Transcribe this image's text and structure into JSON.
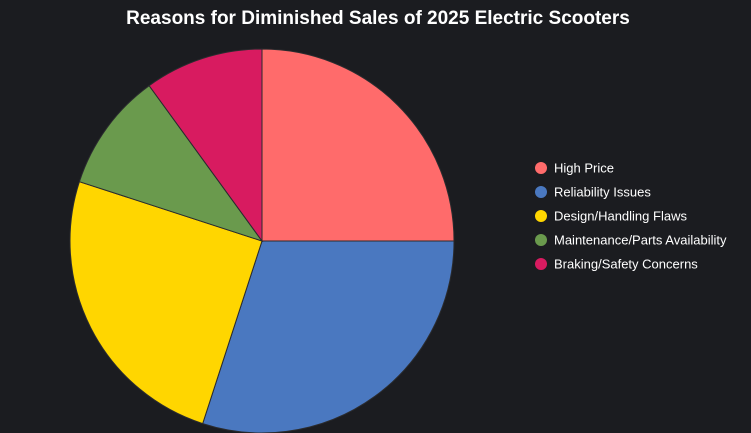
{
  "chart_data": {
    "type": "pie",
    "title": "Reasons for Diminished Sales of 2025 Electric Scooters",
    "categories": [
      "High Price",
      "Reliability Issues",
      "Design/Handling Flaws",
      "Maintenance/Parts Availability",
      "Braking/Safety Concerns"
    ],
    "values": [
      25,
      30,
      25,
      10,
      10
    ],
    "colors": [
      "#ff6b6b",
      "#4a78c0",
      "#ffd600",
      "#6a9a4d",
      "#d81b60"
    ],
    "start_angle": "12 o'clock",
    "direction": "clockwise",
    "legend_position": "right"
  }
}
